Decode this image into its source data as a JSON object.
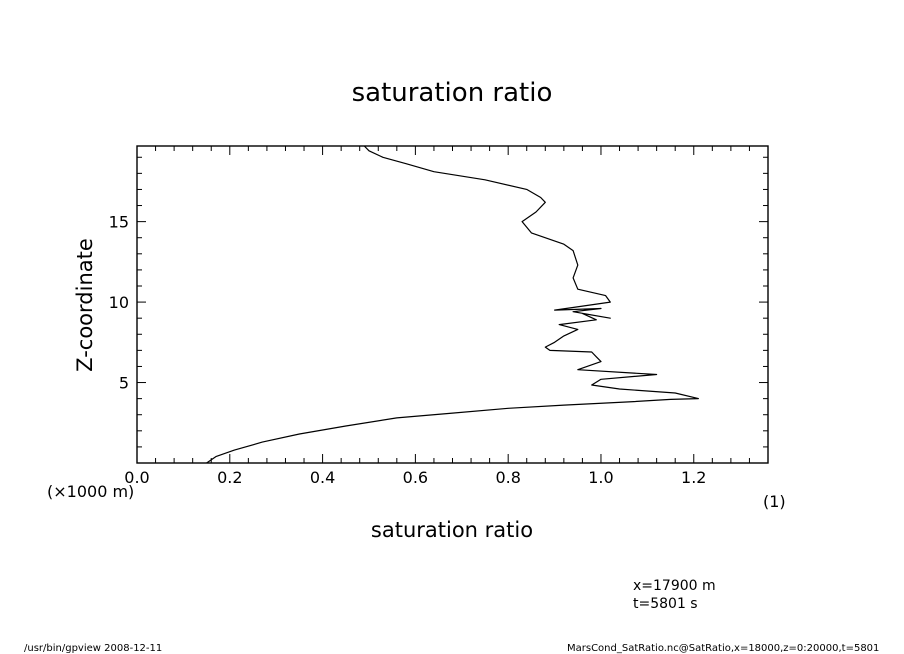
{
  "chart_data": {
    "type": "line",
    "title": "saturation ratio",
    "xlabel": "saturation ratio",
    "xunit": "(1)",
    "ylabel": "Z-coordinate",
    "yunit": "(×1000 m)",
    "xlim": [
      0.0,
      1.36
    ],
    "ylim": [
      0,
      19.7
    ],
    "xticks": [
      "0.0",
      "0.2",
      "0.4",
      "0.6",
      "0.8",
      "1.0",
      "1.2"
    ],
    "yticks": [
      "5",
      "10",
      "15"
    ],
    "grid": false,
    "series": [
      {
        "x": [
          0.15,
          0.17,
          0.21,
          0.27,
          0.35,
          0.45,
          0.56,
          0.68,
          0.8,
          0.92,
          1.06,
          1.15,
          1.21,
          1.16,
          1.04,
          0.98,
          1.0,
          1.12,
          0.95,
          1.0,
          0.99,
          0.98,
          0.89,
          0.88,
          0.9,
          0.92,
          0.95,
          0.91,
          0.99,
          0.96,
          1.02,
          0.94,
          1.0,
          0.9,
          1.02,
          1.01,
          0.95,
          0.94,
          0.95,
          0.94,
          0.92,
          0.85,
          0.83,
          0.86,
          0.88,
          0.87,
          0.84,
          0.75,
          0.64,
          0.58,
          0.53,
          0.5,
          0.49
        ],
        "y": [
          0.0,
          0.4,
          0.8,
          1.3,
          1.8,
          2.3,
          2.8,
          3.1,
          3.4,
          3.6,
          3.8,
          3.95,
          4.0,
          4.35,
          4.6,
          4.85,
          5.2,
          5.5,
          5.8,
          6.3,
          6.6,
          6.9,
          7.0,
          7.2,
          7.5,
          7.9,
          8.3,
          8.6,
          8.9,
          9.3,
          9.0,
          9.4,
          9.6,
          9.5,
          10.0,
          10.4,
          10.8,
          11.5,
          12.3,
          13.2,
          13.6,
          14.3,
          15.0,
          15.6,
          16.2,
          16.5,
          17.0,
          17.6,
          18.1,
          18.6,
          19.0,
          19.4,
          19.7
        ]
      }
    ]
  },
  "annotations": {
    "position": "x=17900  m",
    "time": "t=5801  s"
  },
  "footer": {
    "left": "/usr/bin/gpview   2008-12-11",
    "right": "MarsCond_SatRatio.nc@SatRatio,x=18000,z=0:20000,t=5801"
  }
}
